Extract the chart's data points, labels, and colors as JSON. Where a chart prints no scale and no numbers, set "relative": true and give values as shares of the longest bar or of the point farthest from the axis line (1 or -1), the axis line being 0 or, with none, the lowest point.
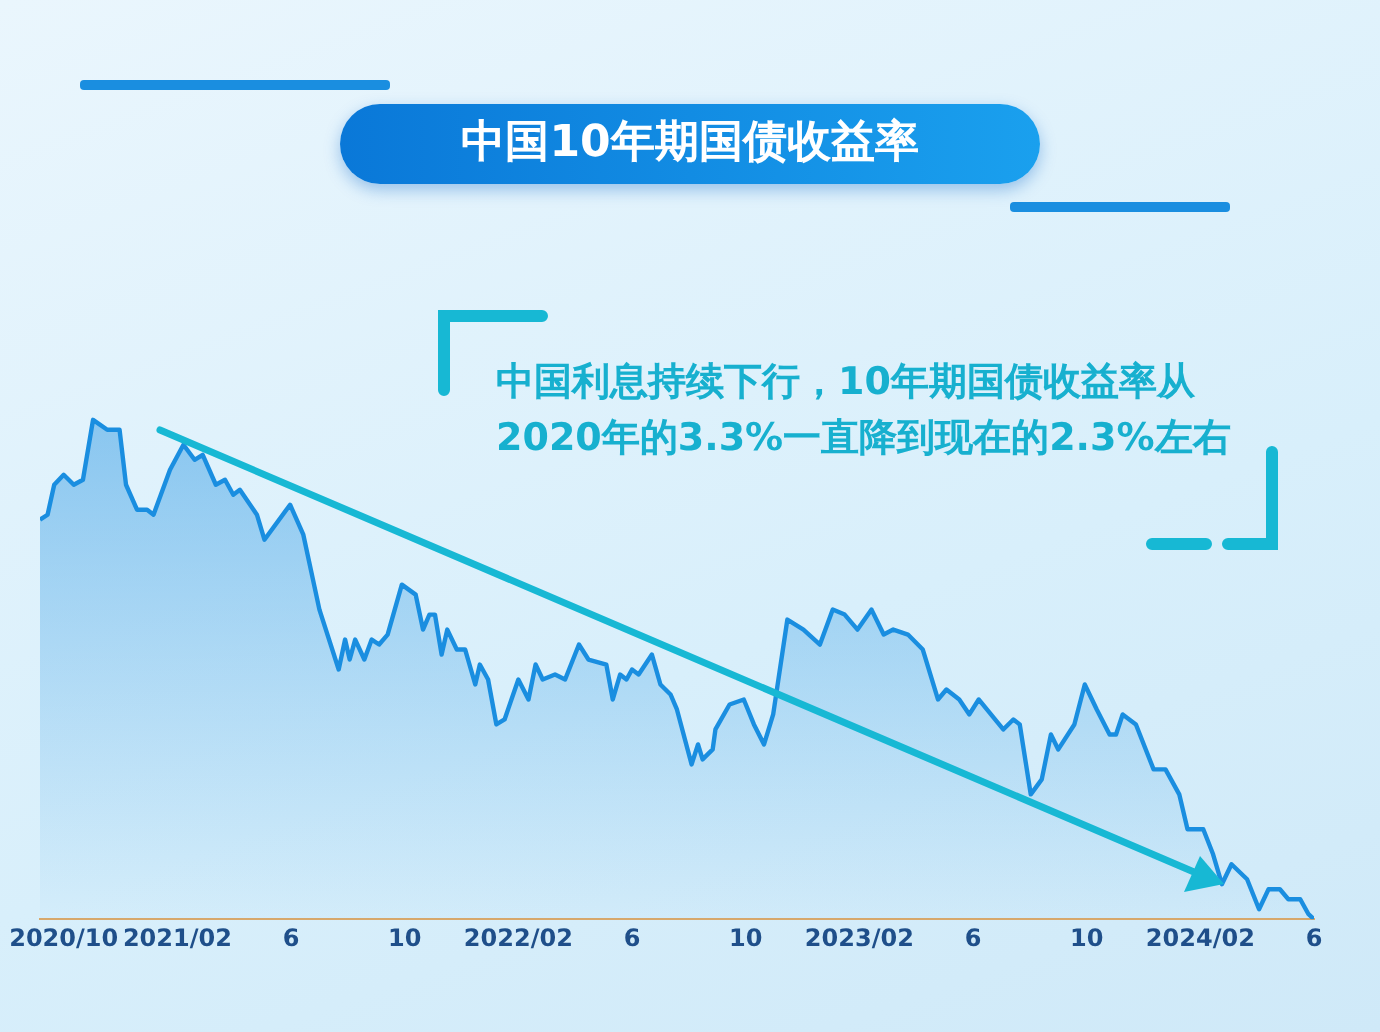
{
  "chart_data": {
    "type": "area",
    "title": "中国10年期国债收益率",
    "annotations": [
      "中国利息持续下行，10年期国债收益率从2020年的3.3%一直降到现在的2.3%左右"
    ],
    "relative": true,
    "color": "#1a8ee0",
    "tick_labels": "x",
    "xlim": [
      "2020-09-06",
      "2024-06-01"
    ],
    "xticks": [
      {
        "value": "2020-10",
        "label": "2020/10"
      },
      {
        "value": "2021-02",
        "label": "2021/02"
      },
      {
        "value": "2021-06",
        "label": "6"
      },
      {
        "value": "2021-10",
        "label": "10"
      },
      {
        "value": "2022-02",
        "label": "2022/02"
      },
      {
        "value": "2022-06",
        "label": "6"
      },
      {
        "value": "2022-10",
        "label": "10"
      },
      {
        "value": "2023-02",
        "label": "2023/02"
      },
      {
        "value": "2023-06",
        "label": "6"
      },
      {
        "value": "2023-10",
        "label": "10"
      },
      {
        "value": "2024-02",
        "label": "2024/02"
      },
      {
        "value": "2024-06",
        "label": "6"
      }
    ],
    "x": [
      "2020-09-06",
      "2020-09-14",
      "2020-09-21",
      "2020-10-01",
      "2020-10-12",
      "2020-10-22",
      "2020-11-02",
      "2020-11-17",
      "2020-11-30",
      "2020-12-07",
      "2020-12-19",
      "2020-12-30",
      "2021-01-06",
      "2021-01-24",
      "2021-02-07",
      "2021-02-18",
      "2021-02-26",
      "2021-03-12",
      "2021-03-22",
      "2021-03-31",
      "2021-04-07",
      "2021-04-25",
      "2021-05-03",
      "2021-05-31",
      "2021-06-14",
      "2021-07-01",
      "2021-07-22",
      "2021-07-29",
      "2021-08-03",
      "2021-08-09",
      "2021-08-19",
      "2021-08-27",
      "2021-09-04",
      "2021-09-13",
      "2021-09-28",
      "2021-10-13",
      "2021-10-21",
      "2021-10-28",
      "2021-11-03",
      "2021-11-10",
      "2021-11-16",
      "2021-11-26",
      "2021-12-05",
      "2021-12-16",
      "2021-12-21",
      "2021-12-30",
      "2022-01-08",
      "2022-01-17",
      "2022-02-01",
      "2022-02-11",
      "2022-02-18",
      "2022-02-25",
      "2022-03-10",
      "2022-03-21",
      "2022-04-05",
      "2022-04-15",
      "2022-05-04",
      "2022-05-11",
      "2022-05-19",
      "2022-05-26",
      "2022-06-01",
      "2022-06-08",
      "2022-06-22",
      "2022-07-01",
      "2022-07-12",
      "2022-07-19",
      "2022-08-04",
      "2022-08-11",
      "2022-08-16",
      "2022-08-27",
      "2022-08-30",
      "2022-09-14",
      "2022-09-29",
      "2022-10-10",
      "2022-10-21",
      "2022-10-31",
      "2022-11-15",
      "2022-12-02",
      "2022-12-20",
      "2023-01-03",
      "2023-01-16",
      "2023-01-30",
      "2023-02-13",
      "2023-02-25",
      "2023-03-07",
      "2023-03-23",
      "2023-04-08",
      "2023-04-24",
      "2023-05-03",
      "2023-05-17",
      "2023-05-28",
      "2023-06-07",
      "2023-07-03",
      "2023-07-14",
      "2023-07-21",
      "2023-08-02",
      "2023-08-14",
      "2023-08-24",
      "2023-09-01",
      "2023-09-18",
      "2023-09-29",
      "2023-10-12",
      "2023-10-26",
      "2023-11-02",
      "2023-11-09",
      "2023-11-23",
      "2023-12-12",
      "2023-12-25",
      "2024-01-09",
      "2024-01-18",
      "2024-02-04",
      "2024-02-14",
      "2024-02-23",
      "2024-03-04",
      "2024-03-21",
      "2024-04-03",
      "2024-04-13",
      "2024-04-25",
      "2024-05-04",
      "2024-05-17",
      "2024-05-26",
      "2024-06-01"
    ],
    "values": [
      0.8,
      0.81,
      0.87,
      0.89,
      0.87,
      0.88,
      1.0,
      0.98,
      0.98,
      0.87,
      0.82,
      0.82,
      0.81,
      0.9,
      0.95,
      0.92,
      0.93,
      0.87,
      0.88,
      0.85,
      0.86,
      0.81,
      0.76,
      0.83,
      0.77,
      0.62,
      0.5,
      0.56,
      0.52,
      0.56,
      0.52,
      0.56,
      0.55,
      0.57,
      0.67,
      0.65,
      0.58,
      0.61,
      0.61,
      0.53,
      0.58,
      0.54,
      0.54,
      0.47,
      0.51,
      0.48,
      0.39,
      0.4,
      0.48,
      0.44,
      0.51,
      0.48,
      0.49,
      0.48,
      0.55,
      0.52,
      0.51,
      0.44,
      0.49,
      0.48,
      0.5,
      0.49,
      0.53,
      0.47,
      0.45,
      0.42,
      0.31,
      0.35,
      0.32,
      0.34,
      0.38,
      0.43,
      0.44,
      0.39,
      0.35,
      0.41,
      0.6,
      0.58,
      0.55,
      0.62,
      0.61,
      0.58,
      0.62,
      0.57,
      0.58,
      0.57,
      0.54,
      0.44,
      0.46,
      0.44,
      0.41,
      0.44,
      0.38,
      0.4,
      0.39,
      0.25,
      0.28,
      0.37,
      0.34,
      0.39,
      0.47,
      0.42,
      0.37,
      0.37,
      0.41,
      0.39,
      0.3,
      0.3,
      0.25,
      0.18,
      0.18,
      0.13,
      0.07,
      0.11,
      0.08,
      0.02,
      0.06,
      0.06,
      0.04,
      0.04,
      0.01,
      0
    ]
  }
}
